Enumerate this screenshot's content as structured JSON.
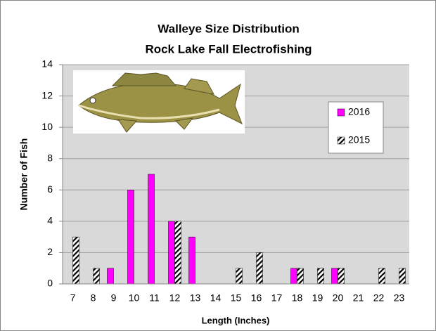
{
  "chart_data": {
    "type": "bar",
    "title": [
      "Walleye Size Distribution",
      "Rock Lake Fall Electrofishing"
    ],
    "x_label": "Length (Inches)",
    "y_label": "Number of Fish",
    "categories": [
      7,
      8,
      9,
      10,
      11,
      12,
      13,
      14,
      15,
      16,
      17,
      18,
      19,
      20,
      21,
      22,
      23
    ],
    "series": [
      {
        "name": "2016",
        "color": "#ff00ff",
        "pattern": "solid",
        "values": [
          0,
          0,
          1,
          6,
          7,
          4,
          3,
          0,
          0,
          0,
          0,
          1,
          0,
          1,
          0,
          0,
          0
        ]
      },
      {
        "name": "2015",
        "color": "#000000",
        "pattern": "diagonal-stripes",
        "values": [
          3,
          1,
          0,
          0,
          0,
          4,
          0,
          0,
          1,
          2,
          0,
          1,
          1,
          1,
          0,
          1,
          1
        ]
      }
    ],
    "ylim": [
      0,
      14
    ],
    "yticks": [
      0,
      2,
      4,
      6,
      8,
      10,
      12,
      14
    ],
    "grid": true,
    "legend": "right"
  }
}
